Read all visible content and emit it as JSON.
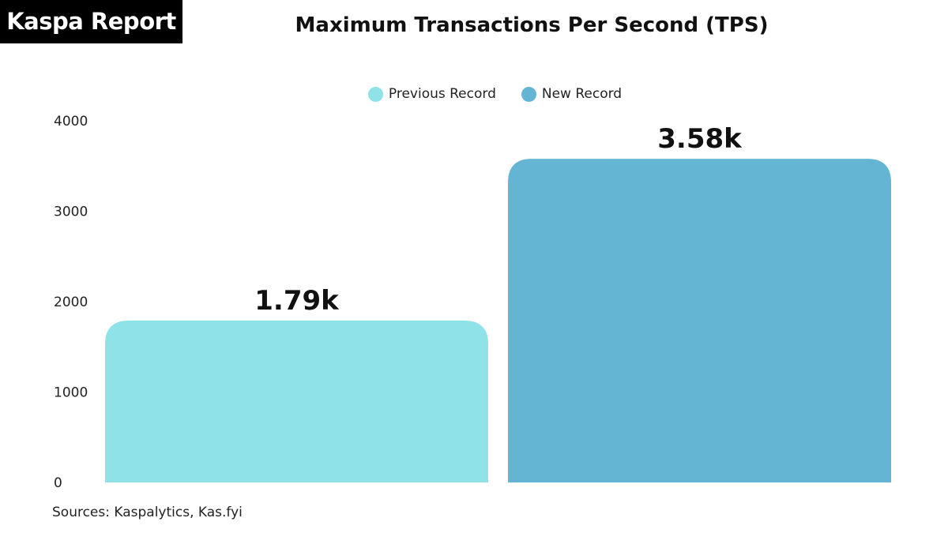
{
  "brand": "Kaspa Report",
  "source_text": "Sources: Kaspalytics, Kas.fyi",
  "colors": {
    "previous": "#8fe3e8",
    "new": "#64b5d3"
  },
  "chart_data": {
    "type": "bar",
    "title": "Maximum Transactions Per Second (TPS)",
    "xlabel": "",
    "ylabel": "",
    "ylim": [
      0,
      4000
    ],
    "yticks": [
      0,
      1000,
      2000,
      3000,
      4000
    ],
    "grid": false,
    "legend_position": "top-center",
    "series": [
      {
        "name": "Previous Record",
        "value": 1790,
        "label": "1.79k",
        "color": "#8fe3e8"
      },
      {
        "name": "New Record",
        "value": 3580,
        "label": "3.58k",
        "color": "#64b5d3"
      }
    ]
  }
}
